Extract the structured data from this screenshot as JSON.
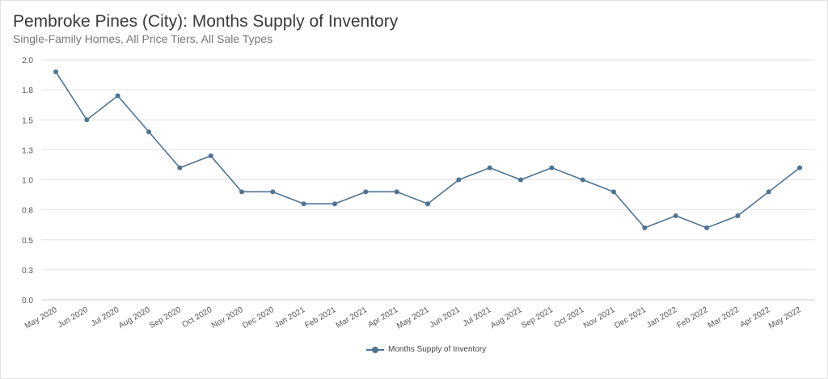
{
  "header": {
    "title": "Pembroke Pines (City): Months Supply of Inventory",
    "subtitle": "Single-Family Homes, All Price Tiers, All Sale Types"
  },
  "chart_data": {
    "type": "line",
    "title": "Pembroke Pines (City): Months Supply of Inventory",
    "subtitle": "Single-Family Homes, All Price Tiers, All Sale Types",
    "xlabel": "",
    "ylabel": "",
    "ylim": [
      0,
      2.0
    ],
    "y_ticks": [
      0.0,
      0.25,
      0.5,
      0.75,
      1.0,
      1.25,
      1.5,
      1.75,
      2.0
    ],
    "y_tick_labels": [
      "0.0",
      "0.3",
      "0.5",
      "0.8",
      "1.0",
      "1.3",
      "1.5",
      "1.8",
      "2.0"
    ],
    "grid": true,
    "legend_position": "bottom-center",
    "color": "#4e7394",
    "categories": [
      "May 2020",
      "Jun 2020",
      "Jul 2020",
      "Aug 2020",
      "Sep 2020",
      "Oct 2020",
      "Nov 2020",
      "Dec 2020",
      "Jan 2021",
      "Feb 2021",
      "Mar 2021",
      "Apr 2021",
      "May 2021",
      "Jun 2021",
      "Jul 2021",
      "Aug 2021",
      "Sep 2021",
      "Oct 2021",
      "Nov 2021",
      "Dec 2021",
      "Jan 2022",
      "Feb 2022",
      "Mar 2022",
      "Apr 2022",
      "May 2022"
    ],
    "series": [
      {
        "name": "Months Supply of Inventory",
        "values": [
          1.9,
          1.5,
          1.7,
          1.4,
          1.1,
          1.2,
          0.9,
          0.9,
          0.8,
          0.8,
          0.9,
          0.9,
          0.8,
          1.0,
          1.1,
          1.0,
          1.1,
          1.0,
          0.9,
          0.6,
          0.7,
          0.6,
          0.7,
          0.9,
          1.1
        ]
      }
    ]
  }
}
